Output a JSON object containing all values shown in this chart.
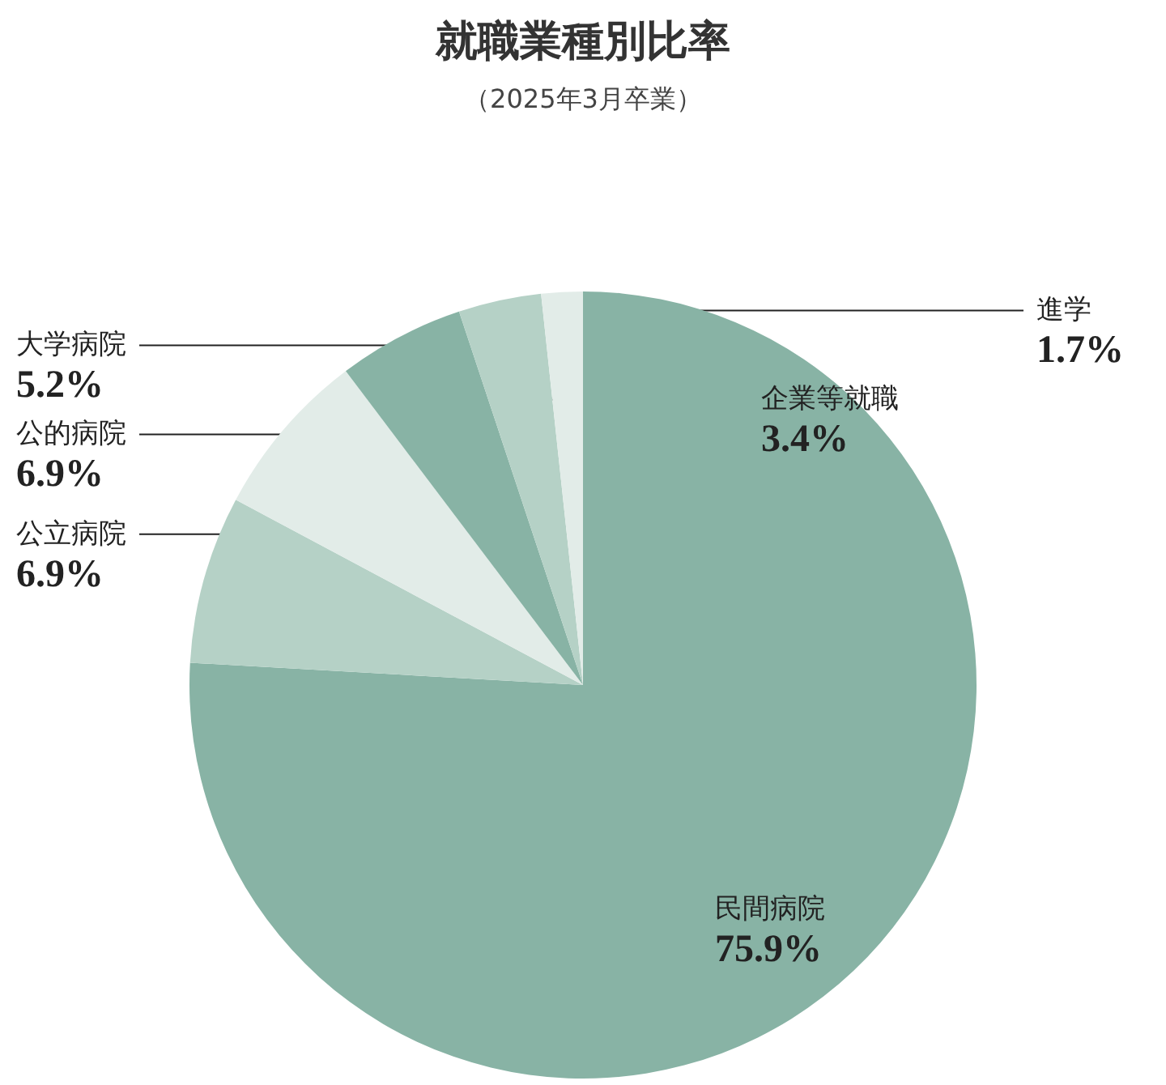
{
  "chart_data": {
    "type": "pie",
    "title": "就職業種別比率",
    "subtitle": "（2025年3月卒業）",
    "categories": [
      "民間病院",
      "公立病院",
      "公的病院",
      "大学病院",
      "企業等就職",
      "進学"
    ],
    "values": [
      75.9,
      6.9,
      6.9,
      5.2,
      3.4,
      1.7
    ],
    "value_labels": [
      "75.9%",
      "6.9%",
      "6.9%",
      "5.2%",
      "3.4%",
      "1.7%"
    ],
    "colors": [
      "#88b3a5",
      "#b5d1c6",
      "#e2ece8",
      "#88b3a5",
      "#b5d1c6",
      "#e2ece8"
    ],
    "legend": false
  }
}
